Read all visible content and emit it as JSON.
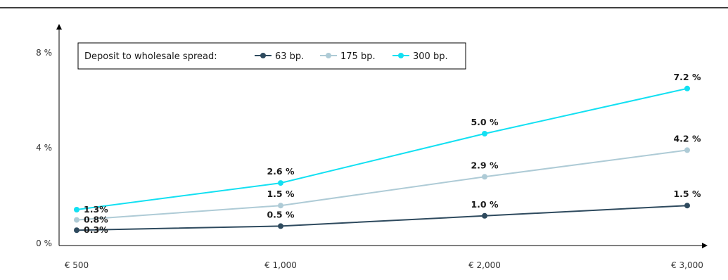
{
  "chart_data": {
    "type": "line",
    "title": "",
    "xlabel": "",
    "ylabel": "",
    "categories": [
      "€ 500",
      "€ 1,000",
      "€ 2,000",
      "€ 3,000"
    ],
    "x": [
      500,
      1000,
      2000,
      3000
    ],
    "xlim": [
      500,
      3000
    ],
    "ylim": [
      0,
      8
    ],
    "y_ticks": [
      "0 %",
      "4 %",
      "8 %"
    ],
    "grid": false,
    "legend": {
      "title": "Deposit to wholesale spread:",
      "placement": "top-left"
    },
    "series": [
      {
        "name": "63 bp.",
        "color": "#2e4a5e",
        "values": [
          0.3,
          0.5,
          1.0,
          1.5
        ],
        "labels": [
          "0.3%",
          "0.5 %",
          "1.0 %",
          "1.5 %"
        ]
      },
      {
        "name": "175 bp.",
        "color": "#aecbd6",
        "values": [
          0.8,
          1.5,
          2.9,
          4.2
        ],
        "labels": [
          "0.8%",
          "1.5 %",
          "2.9 %",
          "4.2 %"
        ]
      },
      {
        "name": "300 bp.",
        "color": "#12e0f2",
        "values": [
          1.3,
          2.6,
          5.0,
          7.2
        ],
        "labels": [
          "1.3%",
          "2.6 %",
          "5.0 %",
          "7.2 %"
        ]
      }
    ]
  }
}
